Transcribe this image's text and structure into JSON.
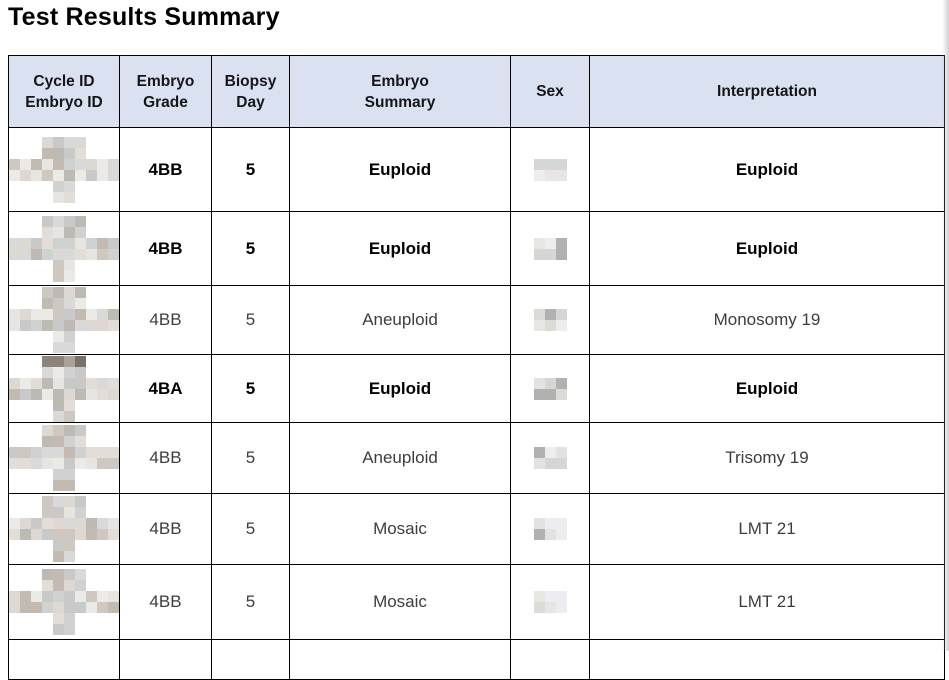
{
  "title": "Test Results Summary",
  "colors": {
    "header_bg": "#dae1f1",
    "border": "#000000",
    "text_bold": "#000000",
    "text_regular": "#3d3d3d",
    "page_edge_shadow": "#acacb4"
  },
  "redaction": {
    "palette": [
      "#eceae7",
      "#ddd8d2",
      "#cfc8c0",
      "#c3bbb1",
      "#d9d9d9",
      "#c9c9c9",
      "#bdb9b3",
      "#e7e5e1",
      "#d0d2d1",
      "#e2ddd7"
    ],
    "palette_dark": [
      "#78716a",
      "#968e85",
      "#aaa29a",
      "#8c847c"
    ],
    "palette_sex": [
      "#e8e6e3",
      "#b3b1af",
      "#d5d7d6",
      "#e3e2e0",
      "#dddbd8",
      "#ebedf0"
    ]
  },
  "table": {
    "headers": [
      {
        "label": "Cycle ID\nEmbryo ID"
      },
      {
        "label": "Embryo\nGrade"
      },
      {
        "label": "Biopsy\nDay"
      },
      {
        "label": "Embryo\nSummary"
      },
      {
        "label": "Sex"
      },
      {
        "label": "Interpretation"
      }
    ],
    "rows": [
      {
        "id_redacted": true,
        "grade": "4BB",
        "biopsy_day": "5",
        "summary": "Euploid",
        "sex_redacted": true,
        "interpretation": "Euploid",
        "bold": true
      },
      {
        "id_redacted": true,
        "grade": "4BB",
        "biopsy_day": "5",
        "summary": "Euploid",
        "sex_redacted": true,
        "interpretation": "Euploid",
        "bold": true
      },
      {
        "id_redacted": true,
        "grade": "4BB",
        "biopsy_day": "5",
        "summary": "Aneuploid",
        "sex_redacted": true,
        "interpretation": "Monosomy 19",
        "bold": false
      },
      {
        "id_redacted": true,
        "grade": "4BA",
        "biopsy_day": "5",
        "summary": "Euploid",
        "sex_redacted": true,
        "interpretation": "Euploid",
        "bold": true
      },
      {
        "id_redacted": true,
        "grade": "4BB",
        "biopsy_day": "5",
        "summary": "Aneuploid",
        "sex_redacted": true,
        "interpretation": "Trisomy 19",
        "bold": false
      },
      {
        "id_redacted": true,
        "grade": "4BB",
        "biopsy_day": "5",
        "summary": "Mosaic",
        "sex_redacted": true,
        "interpretation": "LMT 21",
        "bold": false
      },
      {
        "id_redacted": true,
        "grade": "4BB",
        "biopsy_day": "5",
        "summary": "Mosaic",
        "sex_redacted": true,
        "interpretation": "LMT 21",
        "bold": false
      }
    ]
  }
}
